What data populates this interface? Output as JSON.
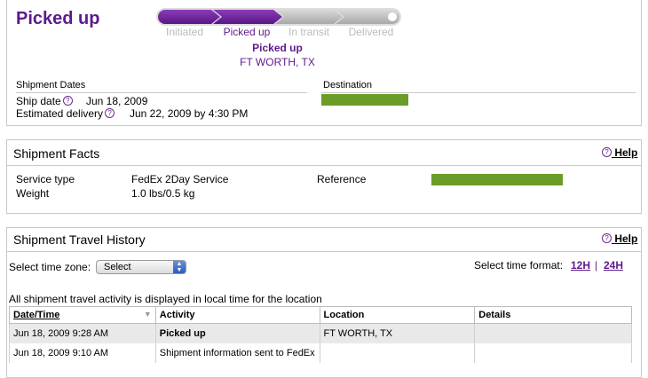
{
  "status": {
    "title": "Picked up",
    "steps": [
      "Initiated",
      "Picked up",
      "In transit",
      "Delivered"
    ],
    "current_status": "Picked up",
    "current_location": "FT WORTH, TX"
  },
  "dates": {
    "heading": "Shipment Dates",
    "ship_date_label": "Ship date",
    "ship_date": "Jun 18, 2009",
    "est_delivery_label": "Estimated delivery",
    "est_delivery": "Jun 22, 2009 by 4:30 PM",
    "destination_label": "Destination"
  },
  "facts": {
    "title": "Shipment Facts",
    "help": "Help",
    "service_type_label": "Service type",
    "service_type": "FedEx 2Day Service",
    "weight_label": "Weight",
    "weight": "1.0 lbs/0.5 kg",
    "reference_label": "Reference"
  },
  "history": {
    "title": "Shipment Travel History",
    "help": "Help",
    "timezone_label": "Select time zone:",
    "timezone_value": "Select",
    "time_format_label": "Select time format:",
    "format_12": "12H",
    "format_sep": "|",
    "format_24": "24H",
    "note": "All shipment travel activity is displayed in local time for the location",
    "columns": [
      "Date/Time",
      "Activity",
      "Location",
      "Details"
    ],
    "rows": [
      {
        "datetime": "Jun 18, 2009 9:28 AM",
        "activity": "Picked up",
        "location": "FT WORTH, TX",
        "details": ""
      },
      {
        "datetime": "Jun 18, 2009 9:10 AM",
        "activity": "Shipment information sent to FedEx",
        "location": "",
        "details": ""
      }
    ]
  },
  "colors": {
    "brand_purple": "#5e1a8c",
    "redaction_green": "#6a9c27"
  }
}
